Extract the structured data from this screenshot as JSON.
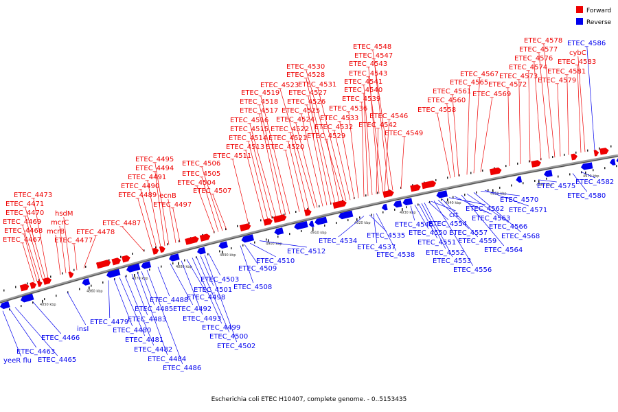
{
  "caption": "Escherichia coli ETEC H10407, complete genome. - 0..5153435",
  "legend": [
    {
      "label": "Forward",
      "color": "#ee0000"
    },
    {
      "label": "Reverse",
      "color": "#0000ee"
    }
  ],
  "colors": {
    "forward": "#ee0000",
    "reverse": "#0000ee",
    "backbone": "#888888"
  },
  "kbp_ticks": [
    "4850 kbp",
    "4860 kbp",
    "4870 kbp",
    "4880 kbp",
    "4890 kbp",
    "4900 kbp",
    "4910 kbp",
    "4920 kbp",
    "4930 kbp",
    "4940 kbp",
    "4950 kbp",
    "4960 kbp",
    "4970 kbp"
  ],
  "forward_labels": [
    "ETEC_4467",
    "ETEC_4468",
    "ETEC_4469",
    "ETEC_4470",
    "ETEC_4471",
    "ETEC_4473",
    "mcrB",
    "mcrC",
    "hsdM",
    "ETEC_4477",
    "ETEC_4478",
    "ETEC_4487",
    "ETEC_4489",
    "ETEC_4490",
    "ETEC_4491",
    "ETEC_4494",
    "ETEC_4495",
    "ecnB",
    "ETEC_4497",
    "ETEC_4504",
    "ETEC_4505",
    "ETEC_4506",
    "ETEC_4507",
    "ETEC_4511",
    "ETEC_4513",
    "ETEC_4514",
    "ETEC_4515",
    "ETEC_4516",
    "ETEC_4517",
    "ETEC_4518",
    "ETEC_4519",
    "ETEC_4520",
    "ETEC_4521",
    "ETEC_4522",
    "ETEC_4523",
    "ETEC_4524",
    "ETEC_4525",
    "ETEC_4526",
    "ETEC_4527",
    "ETEC_4528",
    "ETEC_4529",
    "ETEC_4530",
    "ETEC_4531",
    "ETEC_4532",
    "ETEC_4533",
    "ETEC_4536",
    "ETEC_4539",
    "ETEC_4540",
    "ETEC_4541",
    "ETEC_4542",
    "ETEC_4543",
    "ETEC_4543",
    "ETEC_4546",
    "ETEC_4547",
    "ETEC_4548",
    "ETEC_4549",
    "ETEC_4558",
    "ETEC_4560",
    "ETEC_4561",
    "ETEC_4565",
    "ETEC_4567",
    "ETEC_4569",
    "ETEC_4572",
    "ETEC_4573",
    "ETEC_4574",
    "ETEC_4576",
    "ETEC_4577",
    "ETEC_4578",
    "ETEC_4579",
    "ETEC_4581",
    "ETEC_4583",
    "cybC"
  ],
  "reverse_labels": [
    "yeeR flu",
    "ETEC_4463",
    "ETEC_4465",
    "ETEC_4466",
    "insI",
    "ETEC_4479",
    "ETEC_4480",
    "ETEC_4481",
    "ETEC_4482",
    "ETEC_4483",
    "ETEC_4484",
    "ETEC_4485",
    "ETEC_4486",
    "ETEC_4488",
    "ETEC_4492",
    "ETEC_4493",
    "ETEC_4498",
    "ETEC_4499",
    "ETEC_4500",
    "ETEC_4501",
    "ETEC_4502",
    "ETEC_4503",
    "ETEC_4508",
    "ETEC_4509",
    "ETEC_4510",
    "ETEC_4512",
    "ETEC_4534",
    "ETEC_4535",
    "ETEC_4537",
    "ETEC_4538",
    "ETEC_4545",
    "ETEC_4550",
    "ETEC_4551",
    "ETEC_4552",
    "ETEC_4553",
    "ETEC_4554",
    "crt",
    "ETEC_4556",
    "ETEC_4557",
    "ETEC_4559",
    "ETEC_4562",
    "ETEC_4563",
    "ETEC_4564",
    "ETEC_4566",
    "ETEC_4568",
    "ETEC_4570",
    "ETEC_4571",
    "ETEC_4575",
    "ETEC_4580",
    "ETEC_4582",
    "ETEC_4586"
  ]
}
